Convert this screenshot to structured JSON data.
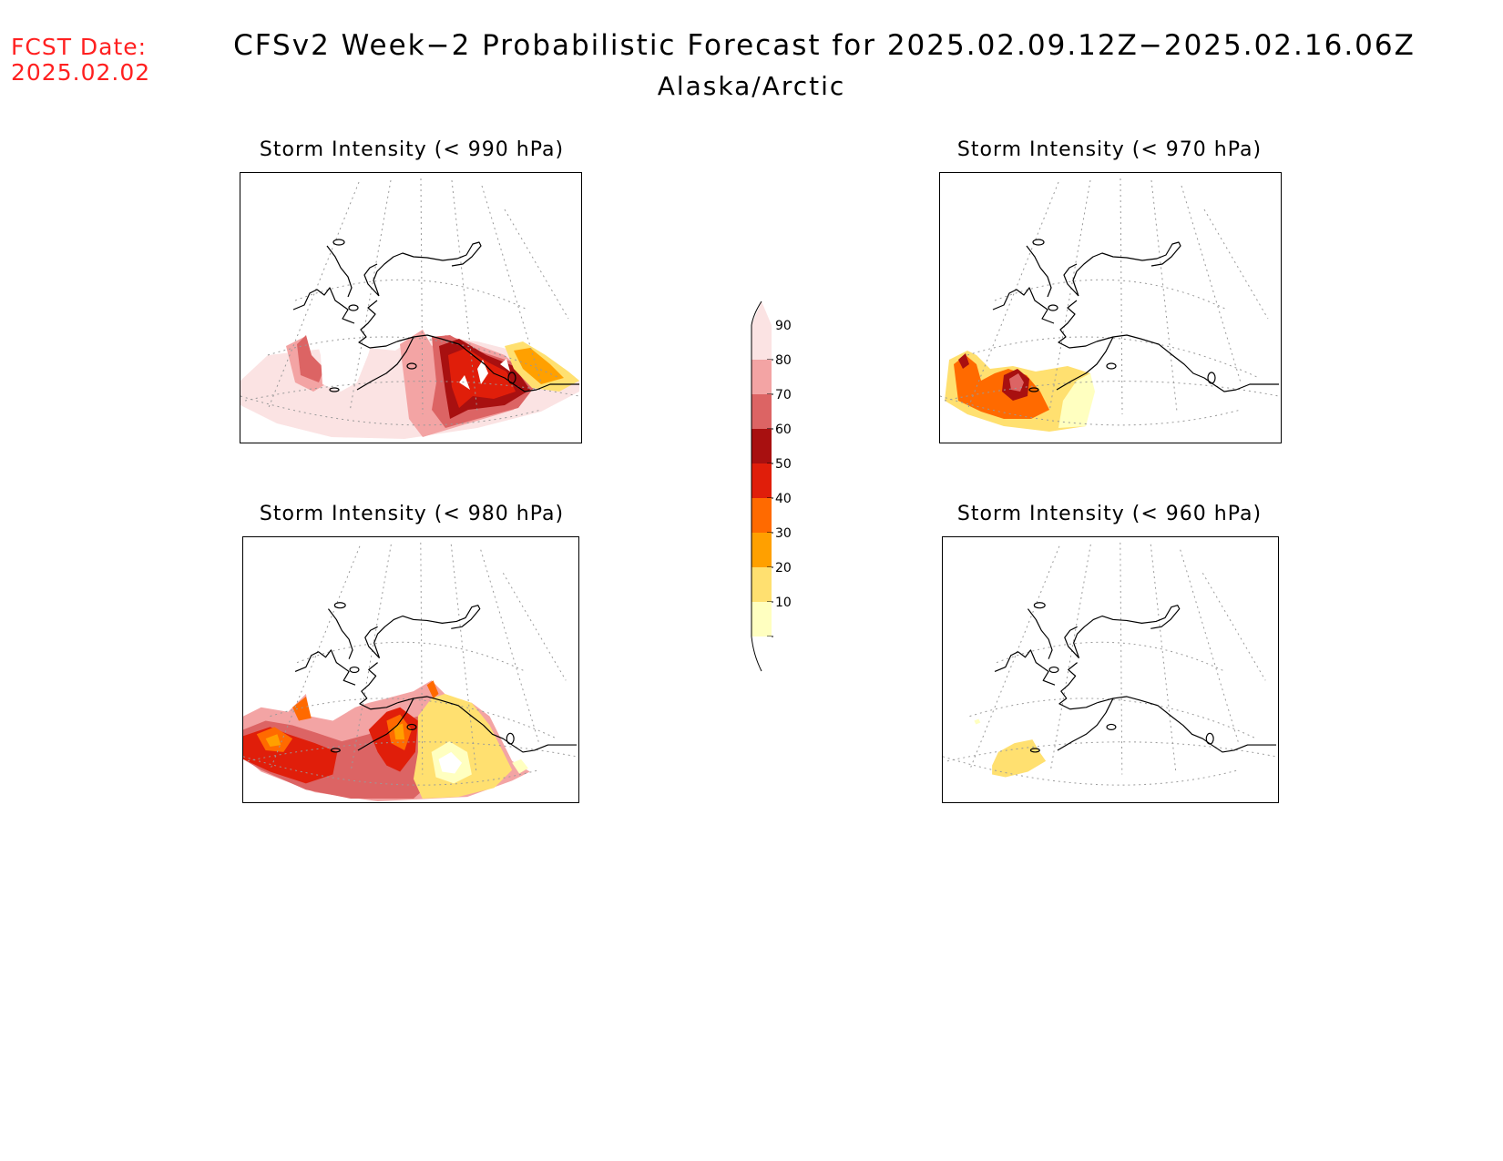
{
  "header": {
    "fcst_label": "FCST Date:",
    "fcst_date": "2025.02.02",
    "title": "CFSv2 Week−2 Probabilistic Forecast for 2025.02.09.12Z−2025.02.16.06Z",
    "subtitle": "Alaska/Arctic"
  },
  "panels": [
    {
      "id": "p990",
      "title": "Storm Intensity (< 990 hPa)"
    },
    {
      "id": "p970",
      "title": "Storm Intensity (< 970 hPa)"
    },
    {
      "id": "p980",
      "title": "Storm Intensity (< 980 hPa)"
    },
    {
      "id": "p960",
      "title": "Storm Intensity (< 960 hPa)"
    }
  ],
  "colorbar": {
    "levels": [
      "90",
      "80",
      "70",
      "60",
      "50",
      "40",
      "30",
      "20",
      "10"
    ],
    "colors": [
      "#fbe3e3",
      "#f3a4a4",
      "#dc6464",
      "#a81010",
      "#e01e0a",
      "#ff6a00",
      "#ffa000",
      "#ffe070",
      "#ffffc0"
    ]
  }
}
